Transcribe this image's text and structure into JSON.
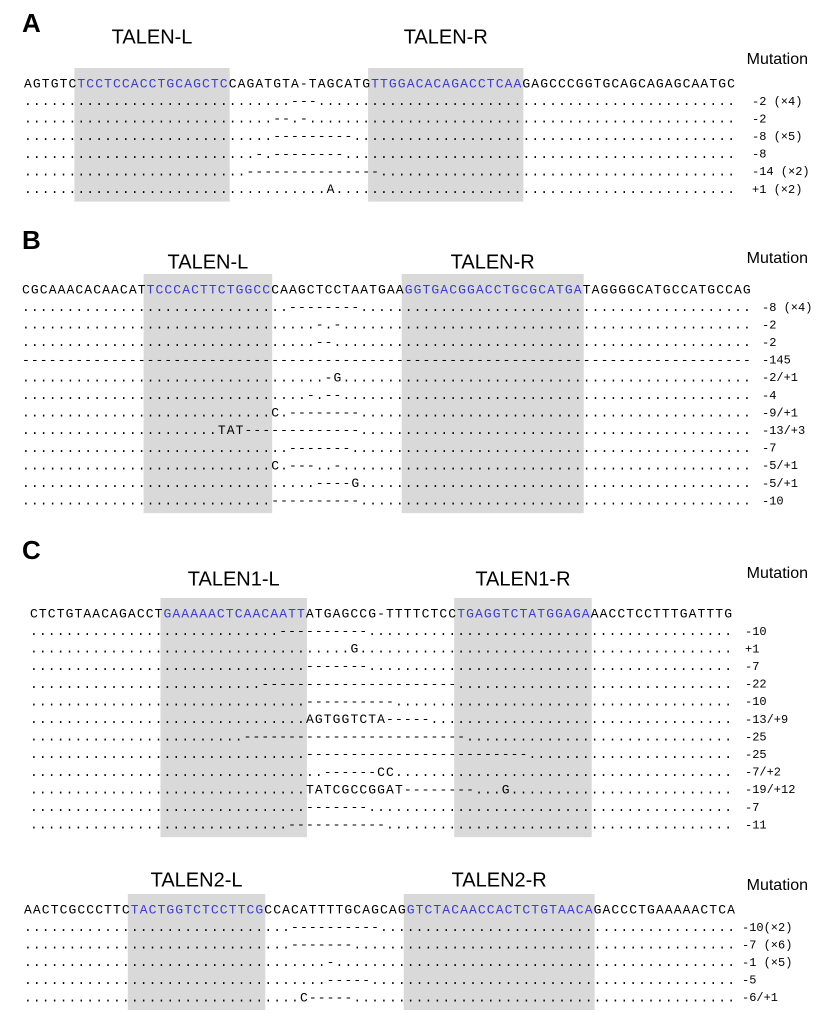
{
  "panels": [
    {
      "label": "A",
      "talen_left": "TALEN-L",
      "talen_right": "TALEN-R",
      "mutation_header": "Mutation",
      "reference": [
        "AGTGTC",
        "TCCTCCACCTGCAGCTC",
        "CAGATGTA-TAGCATG",
        "TTGGACACAGACCTCAA",
        "GAGCCCGGTGCAGCAGAGCAATGC"
      ],
      "rows": [
        {
          "sequence": "..............................---...............................................",
          "mutation": "-2 (×4)"
        },
        {
          "sequence": "............................--.-................................................",
          "mutation": "-2"
        },
        {
          "sequence": "............................---------...........................................",
          "mutation": "-8 (×5)"
        },
        {
          "sequence": "..........................-.--------............................................",
          "mutation": "-8"
        },
        {
          "sequence": ".........................---------------........................................",
          "mutation": "-14 (×2)"
        },
        {
          "sequence": "..................................A.............................................",
          "mutation": "+1 (×2)"
        }
      ]
    },
    {
      "label": "B",
      "talen_left": "TALEN-L",
      "talen_right": "TALEN-R",
      "mutation_header": "Mutation",
      "reference": [
        "CGCAAACACAACAT",
        "TCCCACTTCTGGCC",
        "CAAGCTCCTAATGAA",
        "GGTGACGGACCTGCGCATGA",
        "TAGGGGCATGCCATGCCAG"
      ],
      "rows": [
        {
          "sequence": "..............................--------............................................",
          "mutation": "-8 (×4)"
        },
        {
          "sequence": ".................................-.-..............................................",
          "mutation": "-2"
        },
        {
          "sequence": ".................................--...............................................",
          "mutation": "-2"
        },
        {
          "sequence": "----------------------------------------------------------------------------------",
          "mutation": "-145"
        },
        {
          "sequence": "..................................-G..............................................",
          "mutation": "-2/+1"
        },
        {
          "sequence": "................................-.--..............................................",
          "mutation": "-4"
        },
        {
          "sequence": "............................C.--------............................................",
          "mutation": "-9/+1"
        },
        {
          "sequence": "......................TAT-------------............................................",
          "mutation": "-13/+3"
        },
        {
          "sequence": "..............................-------.............................................",
          "mutation": "-7"
        },
        {
          "sequence": "............................C.---..-..............................................",
          "mutation": "-5/+1"
        },
        {
          "sequence": ".................................----G............................................",
          "mutation": "-5/+1"
        },
        {
          "sequence": "............................----------............................................",
          "mutation": "-10"
        }
      ]
    },
    {
      "label": "C",
      "talen_left": "TALEN1-L",
      "talen_right": "TALEN1-R",
      "mutation_header": "Mutation",
      "reference": [
        "CTCTGTAACAGACCT",
        "GAAAAACTCAACAATT",
        "ATGAGCCG-TTTTCTCC",
        "TGAGGTCTATGGAGA",
        "AACCTCCTTTGATTTG"
      ],
      "rows": [
        {
          "sequence": "............................----------.........................................",
          "mutation": "-10"
        },
        {
          "sequence": "....................................G..........................................",
          "mutation": "+1"
        },
        {
          "sequence": "...............................-------.........................................",
          "mutation": "-7"
        },
        {
          "sequence": "..........................----------------------...............................",
          "mutation": "-22"
        },
        {
          "sequence": "...............................----------......................................",
          "mutation": "-10"
        },
        {
          "sequence": "...............................AGTGGTCTA-----..................................",
          "mutation": "-13/+9"
        },
        {
          "sequence": "........................-------------------------..............................",
          "mutation": "-25"
        },
        {
          "sequence": "...............................-------------------------.......................",
          "mutation": "-25"
        },
        {
          "sequence": ".................................------CC......................................",
          "mutation": "-7/+2"
        },
        {
          "sequence": "...............................TATCGCCGGAT--------...G.........................",
          "mutation": "-19/+12"
        },
        {
          "sequence": "...............................-------.........................................",
          "mutation": "-7"
        },
        {
          "sequence": ".............................-----------.......................................",
          "mutation": "-11"
        }
      ]
    },
    {
      "talen_left": "TALEN2-L",
      "talen_right": "TALEN2-R",
      "mutation_header": "Mutation",
      "reference": [
        "AACTCGCCCTTC",
        "TACTGGTCTCCTTCG",
        "CCACATTTTGCAGCAG",
        "GTCTACAACCACTCTGTAACA",
        "GACCCTGAAAAACTCA"
      ],
      "rows": [
        {
          "sequence": "..............................----------........................................",
          "mutation": "-10(×2)"
        },
        {
          "sequence": "..............................-------...........................................",
          "mutation": "-7 (×6)"
        },
        {
          "sequence": "..................................-.............................................",
          "mutation": "-1 (×5)"
        },
        {
          "sequence": "..................................-----.........................................",
          "mutation": "-5"
        },
        {
          "sequence": "...............................C-----...........................................",
          "mutation": "-6/+1"
        }
      ]
    }
  ]
}
